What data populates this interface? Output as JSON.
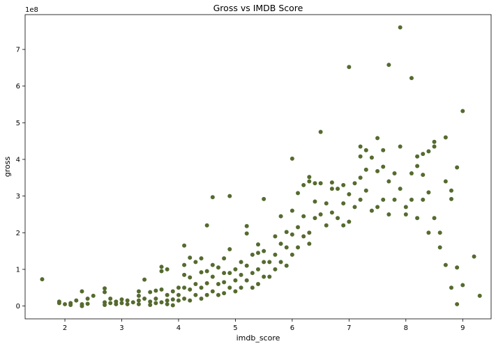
{
  "chart_data": {
    "type": "scatter",
    "title": "Gross vs IMDB Score",
    "xlabel": "imdb_score",
    "ylabel": "gross",
    "y_multiplier_label": "1e8",
    "xlim": [
      1.3,
      9.5
    ],
    "ylim": [
      -0.35,
      7.95
    ],
    "x_ticks": [
      2,
      3,
      4,
      5,
      6,
      7,
      8,
      9
    ],
    "y_ticks": [
      0,
      1,
      2,
      3,
      4,
      5,
      6,
      7
    ],
    "grid": false,
    "legend": "none",
    "marker_color": "#556b2f",
    "series": [
      {
        "points": [
          [
            1.6,
            0.73
          ],
          [
            1.9,
            0.12
          ],
          [
            1.9,
            0.08
          ],
          [
            2.0,
            0.05
          ],
          [
            2.1,
            0.08
          ],
          [
            2.1,
            0.03
          ],
          [
            2.2,
            0.15
          ],
          [
            2.3,
            0.4
          ],
          [
            2.3,
            0.05
          ],
          [
            2.3,
            0.0
          ],
          [
            2.4,
            0.2
          ],
          [
            2.4,
            0.06
          ],
          [
            2.5,
            0.28
          ],
          [
            2.7,
            0.48
          ],
          [
            2.7,
            0.38
          ],
          [
            2.7,
            0.1
          ],
          [
            2.7,
            0.03
          ],
          [
            2.8,
            0.2
          ],
          [
            2.8,
            0.08
          ],
          [
            2.9,
            0.12
          ],
          [
            2.9,
            0.05
          ],
          [
            3.0,
            0.18
          ],
          [
            3.0,
            0.08
          ],
          [
            3.1,
            0.15
          ],
          [
            3.1,
            0.05
          ],
          [
            3.2,
            0.1
          ],
          [
            3.3,
            0.4
          ],
          [
            3.3,
            0.28
          ],
          [
            3.3,
            0.15
          ],
          [
            3.3,
            0.05
          ],
          [
            3.4,
            0.72
          ],
          [
            3.4,
            0.2
          ],
          [
            3.5,
            0.38
          ],
          [
            3.5,
            0.12
          ],
          [
            3.5,
            0.03
          ],
          [
            3.6,
            0.42
          ],
          [
            3.6,
            0.2
          ],
          [
            3.6,
            0.08
          ],
          [
            3.7,
            1.07
          ],
          [
            3.7,
            0.95
          ],
          [
            3.7,
            0.45
          ],
          [
            3.7,
            0.1
          ],
          [
            3.8,
            1.0
          ],
          [
            3.8,
            0.3
          ],
          [
            3.8,
            0.15
          ],
          [
            3.8,
            0.05
          ],
          [
            3.9,
            0.4
          ],
          [
            3.9,
            0.18
          ],
          [
            3.9,
            0.02
          ],
          [
            4.0,
            0.5
          ],
          [
            4.0,
            0.3
          ],
          [
            4.0,
            0.15
          ],
          [
            4.1,
            1.65
          ],
          [
            4.1,
            1.12
          ],
          [
            4.1,
            0.85
          ],
          [
            4.1,
            0.5
          ],
          [
            4.1,
            0.2
          ],
          [
            4.2,
            1.32
          ],
          [
            4.2,
            0.78
          ],
          [
            4.2,
            0.45
          ],
          [
            4.2,
            0.15
          ],
          [
            4.3,
            1.2
          ],
          [
            4.3,
            0.6
          ],
          [
            4.3,
            0.3
          ],
          [
            4.4,
            1.3
          ],
          [
            4.4,
            0.92
          ],
          [
            4.4,
            0.5
          ],
          [
            4.4,
            0.2
          ],
          [
            4.5,
            2.2
          ],
          [
            4.5,
            0.95
          ],
          [
            4.5,
            0.62
          ],
          [
            4.5,
            0.3
          ],
          [
            4.6,
            2.97
          ],
          [
            4.6,
            1.12
          ],
          [
            4.6,
            0.8
          ],
          [
            4.6,
            0.4
          ],
          [
            4.7,
            1.05
          ],
          [
            4.7,
            0.6
          ],
          [
            4.7,
            0.3
          ],
          [
            4.8,
            1.3
          ],
          [
            4.8,
            0.9
          ],
          [
            4.8,
            0.65
          ],
          [
            4.8,
            0.35
          ],
          [
            4.9,
            3.0
          ],
          [
            4.9,
            1.55
          ],
          [
            4.9,
            0.9
          ],
          [
            4.9,
            0.5
          ],
          [
            5.0,
            1.0
          ],
          [
            5.0,
            0.7
          ],
          [
            5.0,
            0.4
          ],
          [
            5.1,
            1.2
          ],
          [
            5.1,
            0.85
          ],
          [
            5.1,
            0.5
          ],
          [
            5.2,
            2.18
          ],
          [
            5.2,
            1.98
          ],
          [
            5.2,
            1.1
          ],
          [
            5.2,
            0.7
          ],
          [
            5.3,
            1.4
          ],
          [
            5.3,
            0.9
          ],
          [
            5.3,
            0.5
          ],
          [
            5.4,
            1.68
          ],
          [
            5.4,
            1.45
          ],
          [
            5.4,
            1.0
          ],
          [
            5.4,
            0.6
          ],
          [
            5.5,
            2.92
          ],
          [
            5.5,
            1.5
          ],
          [
            5.5,
            1.2
          ],
          [
            5.5,
            0.8
          ],
          [
            5.6,
            1.2
          ],
          [
            5.6,
            0.8
          ],
          [
            5.7,
            1.9
          ],
          [
            5.7,
            1.4
          ],
          [
            5.7,
            1.0
          ],
          [
            5.8,
            2.45
          ],
          [
            5.8,
            1.7
          ],
          [
            5.8,
            1.2
          ],
          [
            5.9,
            2.02
          ],
          [
            5.9,
            1.6
          ],
          [
            5.9,
            1.1
          ],
          [
            6.0,
            4.02
          ],
          [
            6.0,
            2.6
          ],
          [
            6.0,
            1.95
          ],
          [
            6.0,
            1.4
          ],
          [
            6.1,
            3.08
          ],
          [
            6.1,
            2.15
          ],
          [
            6.1,
            1.6
          ],
          [
            6.2,
            3.3
          ],
          [
            6.2,
            2.45
          ],
          [
            6.2,
            1.9
          ],
          [
            6.3,
            3.52
          ],
          [
            6.3,
            3.4
          ],
          [
            6.3,
            2.0
          ],
          [
            6.3,
            1.7
          ],
          [
            6.4,
            3.35
          ],
          [
            6.4,
            2.85
          ],
          [
            6.4,
            2.4
          ],
          [
            6.5,
            4.75
          ],
          [
            6.5,
            3.35
          ],
          [
            6.5,
            2.5
          ],
          [
            6.6,
            2.8
          ],
          [
            6.6,
            2.2
          ],
          [
            6.7,
            3.37
          ],
          [
            6.7,
            3.2
          ],
          [
            6.7,
            2.55
          ],
          [
            6.8,
            3.2
          ],
          [
            6.8,
            2.4
          ],
          [
            6.9,
            3.3
          ],
          [
            6.9,
            2.8
          ],
          [
            6.9,
            2.2
          ],
          [
            7.0,
            6.52
          ],
          [
            7.0,
            3.05
          ],
          [
            7.0,
            2.3
          ],
          [
            7.1,
            3.35
          ],
          [
            7.1,
            2.7
          ],
          [
            7.2,
            4.35
          ],
          [
            7.2,
            4.08
          ],
          [
            7.2,
            3.5
          ],
          [
            7.2,
            2.9
          ],
          [
            7.3,
            4.25
          ],
          [
            7.3,
            3.72
          ],
          [
            7.3,
            3.15
          ],
          [
            7.4,
            4.05
          ],
          [
            7.4,
            2.6
          ],
          [
            7.5,
            4.58
          ],
          [
            7.5,
            3.68
          ],
          [
            7.5,
            2.7
          ],
          [
            7.6,
            4.25
          ],
          [
            7.6,
            3.8
          ],
          [
            7.6,
            2.9
          ],
          [
            7.7,
            6.58
          ],
          [
            7.7,
            3.4
          ],
          [
            7.7,
            2.5
          ],
          [
            7.8,
            3.62
          ],
          [
            7.8,
            2.9
          ],
          [
            7.9,
            7.6
          ],
          [
            7.9,
            4.35
          ],
          [
            7.9,
            3.2
          ],
          [
            8.0,
            2.7
          ],
          [
            8.0,
            2.5
          ],
          [
            8.1,
            6.22
          ],
          [
            8.1,
            3.62
          ],
          [
            8.1,
            2.9
          ],
          [
            8.2,
            4.08
          ],
          [
            8.2,
            3.82
          ],
          [
            8.2,
            2.4
          ],
          [
            8.3,
            4.15
          ],
          [
            8.3,
            3.58
          ],
          [
            8.3,
            2.9
          ],
          [
            8.4,
            4.22
          ],
          [
            8.4,
            3.1
          ],
          [
            8.4,
            2.0
          ],
          [
            8.5,
            4.48
          ],
          [
            8.5,
            4.35
          ],
          [
            8.5,
            2.4
          ],
          [
            8.6,
            2.0
          ],
          [
            8.6,
            1.6
          ],
          [
            8.7,
            4.6
          ],
          [
            8.7,
            3.4
          ],
          [
            8.7,
            1.12
          ],
          [
            8.8,
            3.15
          ],
          [
            8.8,
            2.92
          ],
          [
            8.8,
            0.5
          ],
          [
            8.9,
            3.78
          ],
          [
            8.9,
            1.05
          ],
          [
            8.9,
            0.05
          ],
          [
            9.0,
            5.32
          ],
          [
            9.0,
            0.57
          ],
          [
            9.2,
            1.35
          ],
          [
            9.3,
            0.28
          ]
        ]
      }
    ]
  }
}
